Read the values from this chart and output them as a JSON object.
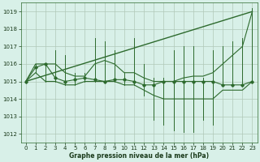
{
  "title": "Graphe pression niveau de la mer (hPa)",
  "background_color": "#d8f0e8",
  "grid_color": "#b0c8b8",
  "line_color": "#2d6a2d",
  "xlim": [
    -0.5,
    23.5
  ],
  "ylim": [
    1011.5,
    1019.5
  ],
  "yticks": [
    1012,
    1013,
    1014,
    1015,
    1016,
    1017,
    1018,
    1019
  ],
  "xticks": [
    0,
    1,
    2,
    3,
    4,
    5,
    6,
    7,
    8,
    9,
    10,
    11,
    12,
    13,
    14,
    15,
    16,
    17,
    18,
    19,
    20,
    21,
    22,
    23
  ],
  "hours": [
    0,
    1,
    2,
    3,
    4,
    5,
    6,
    7,
    8,
    9,
    10,
    11,
    12,
    13,
    14,
    15,
    16,
    17,
    18,
    19,
    20,
    21,
    22,
    23
  ],
  "pressure_avg": [
    1015.0,
    1015.8,
    1016.0,
    1015.2,
    1015.0,
    1015.1,
    1015.2,
    1015.1,
    1015.0,
    1015.1,
    1015.1,
    1015.0,
    1014.8,
    1014.8,
    1015.0,
    1015.0,
    1015.0,
    1015.0,
    1015.0,
    1015.0,
    1014.8,
    1014.8,
    1014.8,
    1015.0
  ],
  "pressure_max": [
    1015.0,
    1016.0,
    1016.0,
    1016.8,
    1016.5,
    1015.5,
    1015.5,
    1017.5,
    1017.3,
    1016.8,
    1015.5,
    1017.5,
    1016.0,
    1015.2,
    1015.2,
    1016.8,
    1017.0,
    1017.0,
    1015.2,
    1016.8,
    1017.0,
    1017.3,
    1017.5,
    1019.2
  ],
  "pressure_min": [
    1015.0,
    1015.5,
    1015.0,
    1015.0,
    1014.8,
    1014.8,
    1015.0,
    1015.0,
    1015.0,
    1015.0,
    1014.8,
    1014.8,
    1014.2,
    1012.8,
    1012.5,
    1012.2,
    1012.1,
    1012.1,
    1012.8,
    1012.5,
    1014.8,
    1014.8,
    1014.8,
    1015.0
  ],
  "trend_x": [
    0,
    23
  ],
  "trend_y": [
    1015.0,
    1019.0
  ],
  "envelope_high": [
    1015.0,
    1016.0,
    1016.0,
    1016.0,
    1015.5,
    1015.3,
    1015.3,
    1016.0,
    1016.2,
    1016.0,
    1015.5,
    1015.5,
    1015.2,
    1015.0,
    1015.0,
    1015.0,
    1015.2,
    1015.3,
    1015.3,
    1015.5,
    1016.0,
    1016.5,
    1017.0,
    1019.0
  ],
  "envelope_low": [
    1015.0,
    1015.5,
    1015.0,
    1015.0,
    1014.8,
    1014.8,
    1015.0,
    1015.0,
    1015.0,
    1015.0,
    1014.8,
    1014.8,
    1014.5,
    1014.2,
    1014.0,
    1014.0,
    1014.0,
    1014.0,
    1014.0,
    1014.0,
    1014.5,
    1014.5,
    1014.5,
    1015.0
  ]
}
